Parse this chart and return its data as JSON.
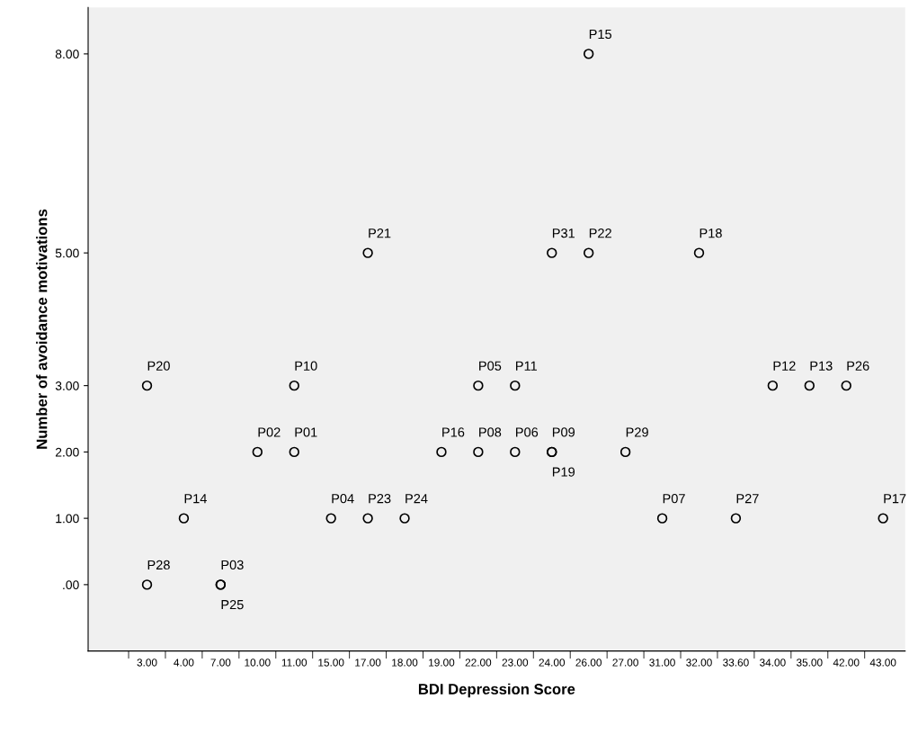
{
  "chart_data": {
    "type": "scatter",
    "xlabel": "BDI Depression Score",
    "ylabel": "Number of avoidance motivations",
    "categories": [
      "3.00",
      "4.00",
      "7.00",
      "10.00",
      "11.00",
      "15.00",
      "17.00",
      "18.00",
      "19.00",
      "22.00",
      "23.00",
      "24.00",
      "26.00",
      "27.00",
      "31.00",
      "32.00",
      "33.60",
      "34.00",
      "35.00",
      "42.00",
      "43.00"
    ],
    "ylim": [
      -1,
      8.7
    ],
    "yticks": [
      {
        "value": 0,
        "label": ".00"
      },
      {
        "value": 1,
        "label": "1.00"
      },
      {
        "value": 2,
        "label": "2.00"
      },
      {
        "value": 3,
        "label": "3.00"
      },
      {
        "value": 5,
        "label": "5.00"
      },
      {
        "value": 8,
        "label": "8.00"
      }
    ],
    "series": [
      {
        "color": "#000000",
        "x": [
          "3.00",
          "3.00",
          "4.00",
          "7.00",
          "7.00",
          "10.00",
          "11.00",
          "11.00",
          "15.00",
          "17.00",
          "17.00",
          "18.00",
          "19.00",
          "22.00",
          "22.00",
          "23.00",
          "23.00",
          "24.00",
          "24.00",
          "24.00",
          "26.00",
          "26.00",
          "27.00",
          "31.00",
          "32.00",
          "33.60",
          "34.00",
          "35.00",
          "42.00",
          "43.00"
        ],
        "values": [
          3,
          0,
          1,
          0,
          0,
          2,
          2,
          3,
          1,
          5,
          1,
          1,
          2,
          3,
          2,
          3,
          2,
          5,
          2,
          2,
          8,
          5,
          2,
          1,
          5,
          1,
          3,
          3,
          3,
          1
        ]
      }
    ],
    "marker": "circle",
    "grid": false,
    "legend": false,
    "annotations": [
      {
        "text": "P20",
        "x": "3.00",
        "y": 3
      },
      {
        "text": "P28",
        "x": "3.00",
        "y": 0
      },
      {
        "text": "P14",
        "x": "4.00",
        "y": 1
      },
      {
        "text": "P03",
        "x": "7.00",
        "y": 0
      },
      {
        "text": "P25",
        "x": "7.00",
        "y": 0
      },
      {
        "text": "P02",
        "x": "10.00",
        "y": 2
      },
      {
        "text": "P01",
        "x": "11.00",
        "y": 2
      },
      {
        "text": "P10",
        "x": "11.00",
        "y": 3
      },
      {
        "text": "P04",
        "x": "15.00",
        "y": 1
      },
      {
        "text": "P21",
        "x": "17.00",
        "y": 5
      },
      {
        "text": "P23",
        "x": "17.00",
        "y": 1
      },
      {
        "text": "P24",
        "x": "18.00",
        "y": 1
      },
      {
        "text": "P16",
        "x": "19.00",
        "y": 2
      },
      {
        "text": "P05",
        "x": "22.00",
        "y": 3
      },
      {
        "text": "P08",
        "x": "22.00",
        "y": 2
      },
      {
        "text": "P11",
        "x": "23.00",
        "y": 3
      },
      {
        "text": "P06",
        "x": "23.00",
        "y": 2
      },
      {
        "text": "P31",
        "x": "24.00",
        "y": 5
      },
      {
        "text": "P09",
        "x": "24.00",
        "y": 2
      },
      {
        "text": "P19",
        "x": "24.00",
        "y": 2
      },
      {
        "text": "P15",
        "x": "26.00",
        "y": 8
      },
      {
        "text": "P22",
        "x": "26.00",
        "y": 5
      },
      {
        "text": "P29",
        "x": "27.00",
        "y": 2
      },
      {
        "text": "P07",
        "x": "31.00",
        "y": 1
      },
      {
        "text": "P18",
        "x": "32.00",
        "y": 5
      },
      {
        "text": "P27",
        "x": "33.60",
        "y": 1
      },
      {
        "text": "P12",
        "x": "34.00",
        "y": 3
      },
      {
        "text": "P13",
        "x": "35.00",
        "y": 3
      },
      {
        "text": "P26",
        "x": "42.00",
        "y": 3
      },
      {
        "text": "P17",
        "x": "43.00",
        "y": 1
      }
    ]
  }
}
